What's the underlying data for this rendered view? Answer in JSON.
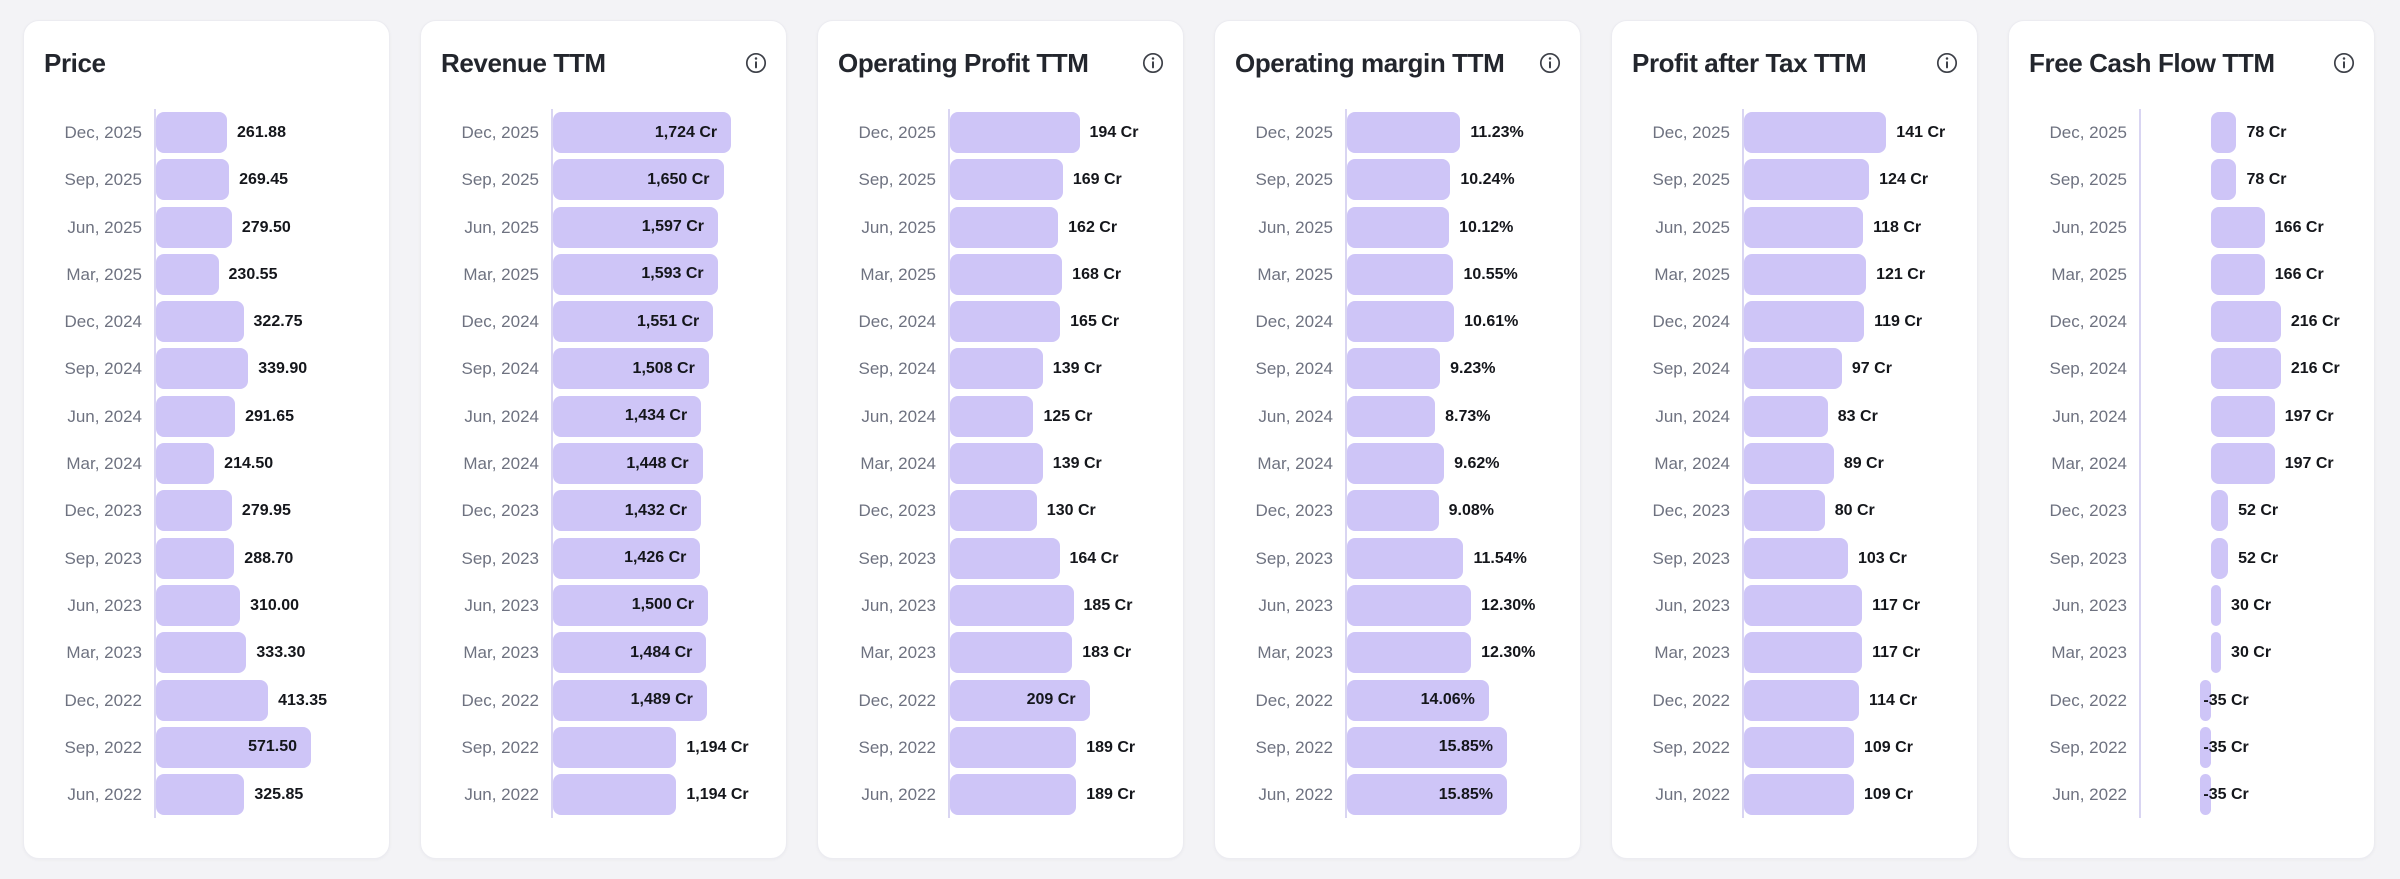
{
  "page": {
    "background_color": "#f3f3f6",
    "card_background": "#ffffff",
    "bar_color": "#cec5f7",
    "axis_line_color": "#d9d5f2"
  },
  "chart_data": [
    {
      "type": "bar",
      "orientation": "horizontal",
      "title": "Price",
      "has_info_icon": false,
      "unit": "",
      "grid": false,
      "legend": false,
      "xlim": [
        0,
        800
      ],
      "categories": [
        "Dec, 2025",
        "Sep, 2025",
        "Jun, 2025",
        "Mar, 2025",
        "Dec, 2024",
        "Sep, 2024",
        "Jun, 2024",
        "Mar, 2024",
        "Dec, 2023",
        "Sep, 2023",
        "Jun, 2023",
        "Mar, 2023",
        "Dec, 2022",
        "Sep, 2022",
        "Jun, 2022"
      ],
      "values": [
        261.88,
        269.45,
        279.5,
        230.55,
        322.75,
        339.9,
        291.65,
        214.5,
        279.95,
        288.7,
        310.0,
        333.3,
        413.35,
        571.5,
        325.85
      ],
      "value_labels": [
        "261.88",
        "269.45",
        "279.50",
        "230.55",
        "322.75",
        "339.90",
        "291.65",
        "214.50",
        "279.95",
        "288.70",
        "310.00",
        "333.30",
        "413.35",
        "571.50",
        "325.85"
      ],
      "labels_inside_indices": [
        13
      ]
    },
    {
      "type": "bar",
      "orientation": "horizontal",
      "title": "Revenue TTM",
      "has_info_icon": true,
      "unit": "Cr",
      "grid": false,
      "legend": false,
      "xlim": [
        0,
        2100
      ],
      "categories": [
        "Dec, 2025",
        "Sep, 2025",
        "Jun, 2025",
        "Mar, 2025",
        "Dec, 2024",
        "Sep, 2024",
        "Jun, 2024",
        "Mar, 2024",
        "Dec, 2023",
        "Sep, 2023",
        "Jun, 2023",
        "Mar, 2023",
        "Dec, 2022",
        "Sep, 2022",
        "Jun, 2022"
      ],
      "values": [
        1724,
        1650,
        1597,
        1593,
        1551,
        1508,
        1434,
        1448,
        1432,
        1426,
        1500,
        1484,
        1489,
        1194,
        1194
      ],
      "value_labels": [
        "1,724 Cr",
        "1,650 Cr",
        "1,597 Cr",
        "1,593 Cr",
        "1,551 Cr",
        "1,508 Cr",
        "1,434 Cr",
        "1,448 Cr",
        "1,432 Cr",
        "1,426 Cr",
        "1,500 Cr",
        "1,484 Cr",
        "1,489 Cr",
        "1,194 Cr",
        "1,194 Cr"
      ],
      "labels_inside_indices": [
        0,
        1,
        2,
        3,
        4,
        5,
        6,
        7,
        8,
        9,
        10,
        11,
        12
      ]
    },
    {
      "type": "bar",
      "orientation": "horizontal",
      "title": "Operating Profit TTM",
      "has_info_icon": true,
      "unit": "Cr",
      "grid": false,
      "legend": false,
      "xlim": [
        0,
        325
      ],
      "categories": [
        "Dec, 2025",
        "Sep, 2025",
        "Jun, 2025",
        "Mar, 2025",
        "Dec, 2024",
        "Sep, 2024",
        "Jun, 2024",
        "Mar, 2024",
        "Dec, 2023",
        "Sep, 2023",
        "Jun, 2023",
        "Mar, 2023",
        "Dec, 2022",
        "Sep, 2022",
        "Jun, 2022"
      ],
      "values": [
        194,
        169,
        162,
        168,
        165,
        139,
        125,
        139,
        130,
        164,
        185,
        183,
        209,
        189,
        189
      ],
      "value_labels": [
        "194 Cr",
        "169 Cr",
        "162 Cr",
        "168 Cr",
        "165 Cr",
        "139 Cr",
        "125 Cr",
        "139 Cr",
        "130 Cr",
        "164 Cr",
        "185 Cr",
        "183 Cr",
        "209 Cr",
        "189 Cr",
        "189 Cr"
      ],
      "labels_inside_indices": [
        12
      ]
    },
    {
      "type": "bar",
      "orientation": "horizontal",
      "title": "Operating margin TTM",
      "has_info_icon": true,
      "unit": "%",
      "grid": false,
      "legend": false,
      "xlim": [
        0,
        21.5
      ],
      "categories": [
        "Dec, 2025",
        "Sep, 2025",
        "Jun, 2025",
        "Mar, 2025",
        "Dec, 2024",
        "Sep, 2024",
        "Jun, 2024",
        "Mar, 2024",
        "Dec, 2023",
        "Sep, 2023",
        "Jun, 2023",
        "Mar, 2023",
        "Dec, 2022",
        "Sep, 2022",
        "Jun, 2022"
      ],
      "values": [
        11.23,
        10.24,
        10.12,
        10.55,
        10.61,
        9.23,
        8.73,
        9.62,
        9.08,
        11.54,
        12.3,
        12.3,
        14.06,
        15.85,
        15.85
      ],
      "value_labels": [
        "11.23%",
        "10.24%",
        "10.12%",
        "10.55%",
        "10.61%",
        "9.23%",
        "8.73%",
        "9.62%",
        "9.08%",
        "11.54%",
        "12.30%",
        "12.30%",
        "14.06%",
        "15.85%",
        "15.85%"
      ],
      "labels_inside_indices": [
        12,
        13,
        14
      ]
    },
    {
      "type": "bar",
      "orientation": "horizontal",
      "title": "Profit after Tax TTM",
      "has_info_icon": true,
      "unit": "Cr",
      "grid": false,
      "legend": false,
      "xlim": [
        0,
        215
      ],
      "categories": [
        "Dec, 2025",
        "Sep, 2025",
        "Jun, 2025",
        "Mar, 2025",
        "Dec, 2024",
        "Sep, 2024",
        "Jun, 2024",
        "Mar, 2024",
        "Dec, 2023",
        "Sep, 2023",
        "Jun, 2023",
        "Mar, 2023",
        "Dec, 2022",
        "Sep, 2022",
        "Jun, 2022"
      ],
      "values": [
        141,
        124,
        118,
        121,
        119,
        97,
        83,
        89,
        80,
        103,
        117,
        117,
        114,
        109,
        109
      ],
      "value_labels": [
        "141 Cr",
        "124 Cr",
        "118 Cr",
        "121 Cr",
        "119 Cr",
        "97 Cr",
        "83 Cr",
        "89 Cr",
        "80 Cr",
        "103 Cr",
        "117 Cr",
        "117 Cr",
        "114 Cr",
        "109 Cr",
        "109 Cr"
      ],
      "labels_inside_indices": []
    },
    {
      "type": "bar",
      "orientation": "horizontal",
      "title": "Free Cash Flow TTM",
      "has_info_icon": true,
      "unit": "Cr",
      "grid": false,
      "legend": false,
      "xlim": [
        -219,
        456
      ],
      "categories": [
        "Dec, 2025",
        "Sep, 2025",
        "Jun, 2025",
        "Mar, 2025",
        "Dec, 2024",
        "Sep, 2024",
        "Jun, 2024",
        "Mar, 2024",
        "Dec, 2023",
        "Sep, 2023",
        "Jun, 2023",
        "Mar, 2023",
        "Dec, 2022",
        "Sep, 2022",
        "Jun, 2022"
      ],
      "values": [
        78,
        78,
        166,
        166,
        216,
        216,
        197,
        197,
        52,
        52,
        30,
        30,
        -35,
        -35,
        -35
      ],
      "value_labels": [
        "78 Cr",
        "78 Cr",
        "166 Cr",
        "166 Cr",
        "216 Cr",
        "216 Cr",
        "197 Cr",
        "197 Cr",
        "52 Cr",
        "52 Cr",
        "30 Cr",
        "30 Cr",
        "-35 Cr",
        "-35 Cr",
        "-35 Cr"
      ],
      "labels_inside_indices": []
    }
  ]
}
